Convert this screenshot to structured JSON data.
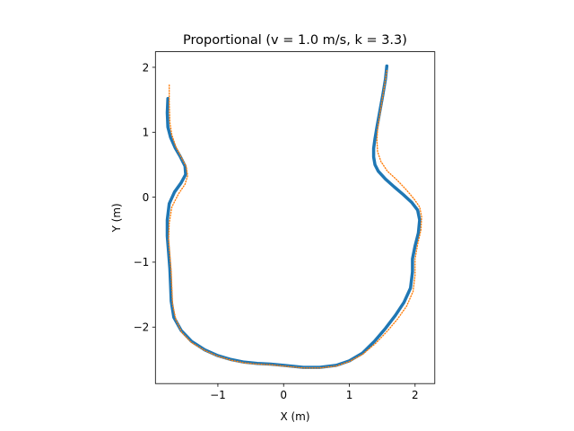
{
  "chart_data": {
    "type": "line",
    "title": "Proportional (v = 1.0 m/s, k = 3.3)",
    "xlabel": "X (m)",
    "ylabel": "Y (m)",
    "xlim": [
      -1.95,
      2.3
    ],
    "ylim": [
      -2.87,
      2.24
    ],
    "xticks": [
      -1,
      0,
      1,
      2
    ],
    "yticks": [
      2,
      1,
      0,
      -1,
      -2
    ],
    "xtick_labels": [
      "−1",
      "0",
      "1",
      "2"
    ],
    "ytick_labels": [
      "2",
      "1",
      "0",
      "−1",
      "−2"
    ],
    "grid": false,
    "colors": {
      "actual": "#1f77b4",
      "reference": "#ff7f0e"
    },
    "series": [
      {
        "style": "solid",
        "x": [
          1.57,
          1.55,
          1.51,
          1.46,
          1.42,
          1.39,
          1.37,
          1.37,
          1.39,
          1.44,
          1.55,
          1.68,
          1.82,
          1.95,
          2.04,
          2.07,
          2.05,
          2.0,
          1.96,
          1.96,
          1.93,
          1.83,
          1.7,
          1.55,
          1.38,
          1.2,
          1.0,
          0.8,
          0.55,
          0.3,
          0.0,
          -0.2,
          -0.4,
          -0.6,
          -0.8,
          -1.0,
          -1.2,
          -1.4,
          -1.56,
          -1.67,
          -1.71,
          -1.72,
          -1.73,
          -1.75,
          -1.77,
          -1.77,
          -1.74,
          -1.66,
          -1.56,
          -1.49,
          -1.5,
          -1.57,
          -1.65,
          -1.72,
          -1.76,
          -1.77,
          -1.76
        ],
        "y": [
          2.02,
          1.82,
          1.58,
          1.3,
          1.08,
          0.9,
          0.75,
          0.62,
          0.5,
          0.4,
          0.28,
          0.16,
          0.04,
          -0.08,
          -0.2,
          -0.35,
          -0.55,
          -0.75,
          -0.95,
          -1.15,
          -1.4,
          -1.62,
          -1.82,
          -2.02,
          -2.22,
          -2.4,
          -2.52,
          -2.59,
          -2.62,
          -2.62,
          -2.59,
          -2.57,
          -2.56,
          -2.54,
          -2.5,
          -2.44,
          -2.35,
          -2.22,
          -2.05,
          -1.85,
          -1.6,
          -1.35,
          -1.1,
          -0.85,
          -0.6,
          -0.35,
          -0.1,
          0.08,
          0.22,
          0.35,
          0.48,
          0.62,
          0.76,
          0.92,
          1.08,
          1.3,
          1.52
        ]
      },
      {
        "style": "dotted",
        "x": [
          1.57,
          1.54,
          1.5,
          1.46,
          1.43,
          1.42,
          1.43,
          1.48,
          1.58,
          1.72,
          1.86,
          1.98,
          2.07,
          2.1,
          2.09,
          2.04,
          2.0,
          2.0,
          1.97,
          1.87,
          1.73,
          1.58,
          1.4,
          1.2,
          1.0,
          0.8,
          0.55,
          0.3,
          0.0,
          -0.2,
          -0.4,
          -0.6,
          -0.8,
          -1.0,
          -1.2,
          -1.4,
          -1.55,
          -1.64,
          -1.69,
          -1.7,
          -1.71,
          -1.73,
          -1.75,
          -1.74,
          -1.7,
          -1.6,
          -1.5,
          -1.46,
          -1.48,
          -1.56,
          -1.64,
          -1.7,
          -1.73,
          -1.74,
          -1.74
        ],
        "y": [
          1.95,
          1.75,
          1.5,
          1.25,
          1.05,
          0.88,
          0.7,
          0.55,
          0.4,
          0.27,
          0.12,
          -0.02,
          -0.15,
          -0.3,
          -0.5,
          -0.72,
          -0.95,
          -1.2,
          -1.45,
          -1.68,
          -1.88,
          -2.06,
          -2.25,
          -2.42,
          -2.53,
          -2.6,
          -2.63,
          -2.63,
          -2.6,
          -2.58,
          -2.57,
          -2.55,
          -2.51,
          -2.45,
          -2.36,
          -2.24,
          -2.08,
          -1.88,
          -1.65,
          -1.4,
          -1.15,
          -0.9,
          -0.65,
          -0.4,
          -0.15,
          0.05,
          0.2,
          0.33,
          0.47,
          0.62,
          0.78,
          0.96,
          1.15,
          1.45,
          1.75
        ]
      }
    ]
  }
}
